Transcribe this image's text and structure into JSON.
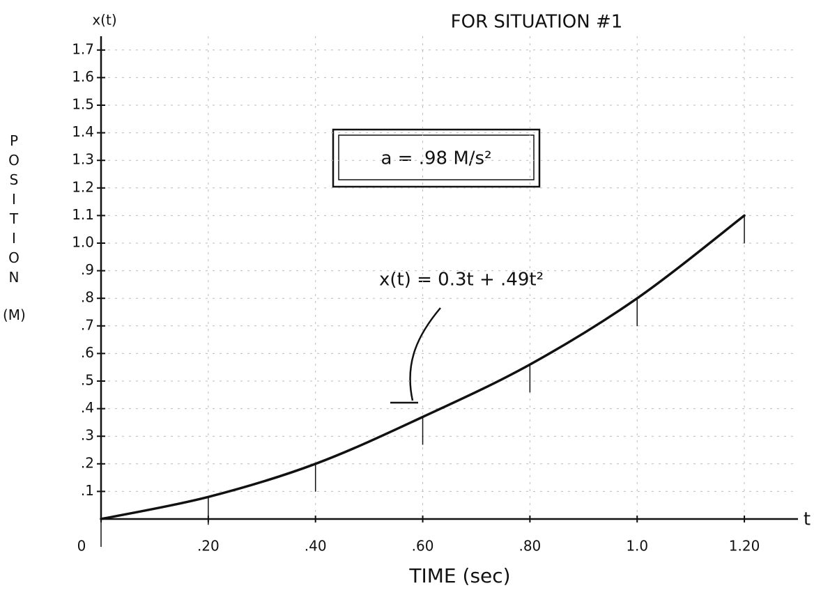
{
  "chart_data": {
    "type": "line",
    "title": "FOR SITUATION #1",
    "y_axis_title": "x(t)",
    "ylabel": "POSITION",
    "yunit": "(M)",
    "xlabel": "TIME (sec)",
    "x_axis_variable": "t",
    "annotations": [
      "a = .98 M/s²",
      "x(t) = 0.3t + .49t²"
    ],
    "x": [
      0,
      0.2,
      0.4,
      0.6,
      0.8,
      1.0,
      1.2
    ],
    "series": [
      {
        "color": "#111111",
        "values": [
          0,
          0.08,
          0.2,
          0.37,
          0.56,
          0.8,
          1.1
        ]
      }
    ],
    "xlim": [
      0,
      1.3
    ],
    "ylim": [
      0,
      1.75
    ],
    "xticks": [
      0,
      {
        "value": 0.2,
        "label": ".20"
      },
      {
        "value": 0.4,
        "label": ".40"
      },
      {
        "value": 0.6,
        "label": ".60"
      },
      {
        "value": 0.8,
        "label": ".80"
      },
      {
        "value": 1,
        "label": "1.0"
      },
      {
        "value": 1.2,
        "label": "1.20"
      }
    ],
    "yticks": [
      {
        "value": 0.1,
        "label": ".1"
      },
      {
        "value": 0.2,
        "label": ".2"
      },
      {
        "value": 0.3,
        "label": ".3"
      },
      {
        "value": 0.4,
        "label": ".4"
      },
      {
        "value": 0.5,
        "label": ".5"
      },
      {
        "value": 0.6,
        "label": ".6"
      },
      {
        "value": 0.7,
        "label": ".7"
      },
      {
        "value": 0.8,
        "label": ".8"
      },
      {
        "value": 0.9,
        "label": ".9"
      },
      {
        "value": 1,
        "label": "1.0"
      },
      1.1,
      1.2,
      1.3,
      1.4,
      1.5,
      1.6,
      1.7
    ],
    "grid": true
  }
}
